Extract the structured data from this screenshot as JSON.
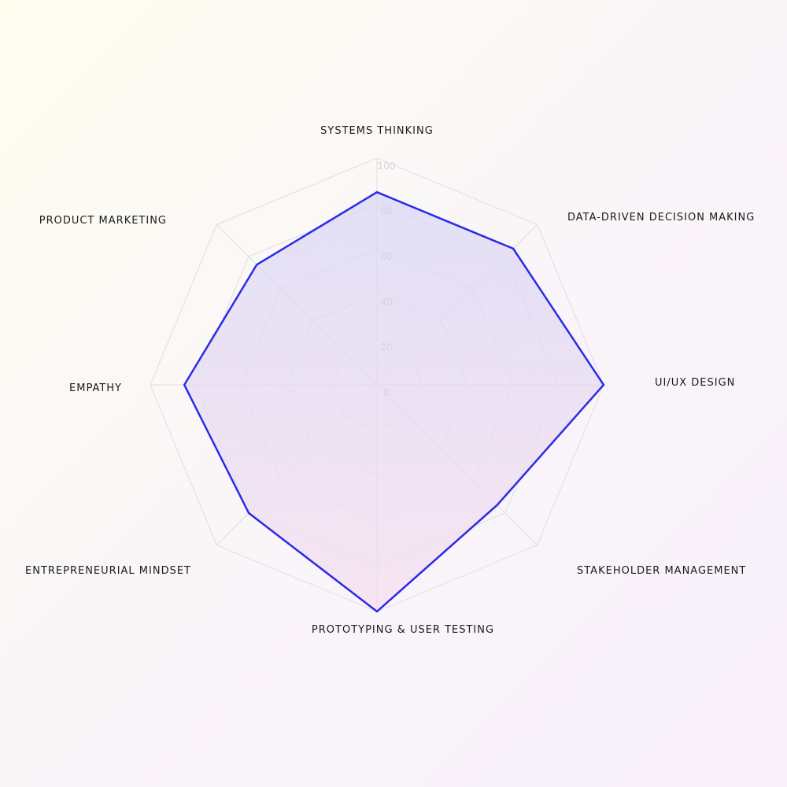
{
  "chart_data": {
    "type": "radar",
    "axes": [
      "SYSTEMS THINKING",
      "DATA-DRIVEN DECISION MAKING",
      "UI/UX DESIGN",
      "STAKEHOLDER MANAGEMENT",
      "PROTOTYPING & USER TESTING",
      "ENTREPRENEURIAL MINDSET",
      "EMPATHY",
      "PRODUCT MARKETING"
    ],
    "series": [
      {
        "values": [
          85,
          85,
          100,
          75,
          100,
          80,
          85,
          75
        ]
      }
    ],
    "rlim": [
      0,
      100
    ],
    "ticks": [
      "0",
      "20",
      "40",
      "60",
      "80",
      "100"
    ],
    "grid": true,
    "colors": {
      "line": "#2b2be6",
      "fill_top": "#d8d6f6",
      "fill_bottom": "#f6e0ee",
      "grid": "#e4e1e8",
      "tick_text": "#d6d3dc",
      "label_text": "#1a1a1a"
    }
  }
}
